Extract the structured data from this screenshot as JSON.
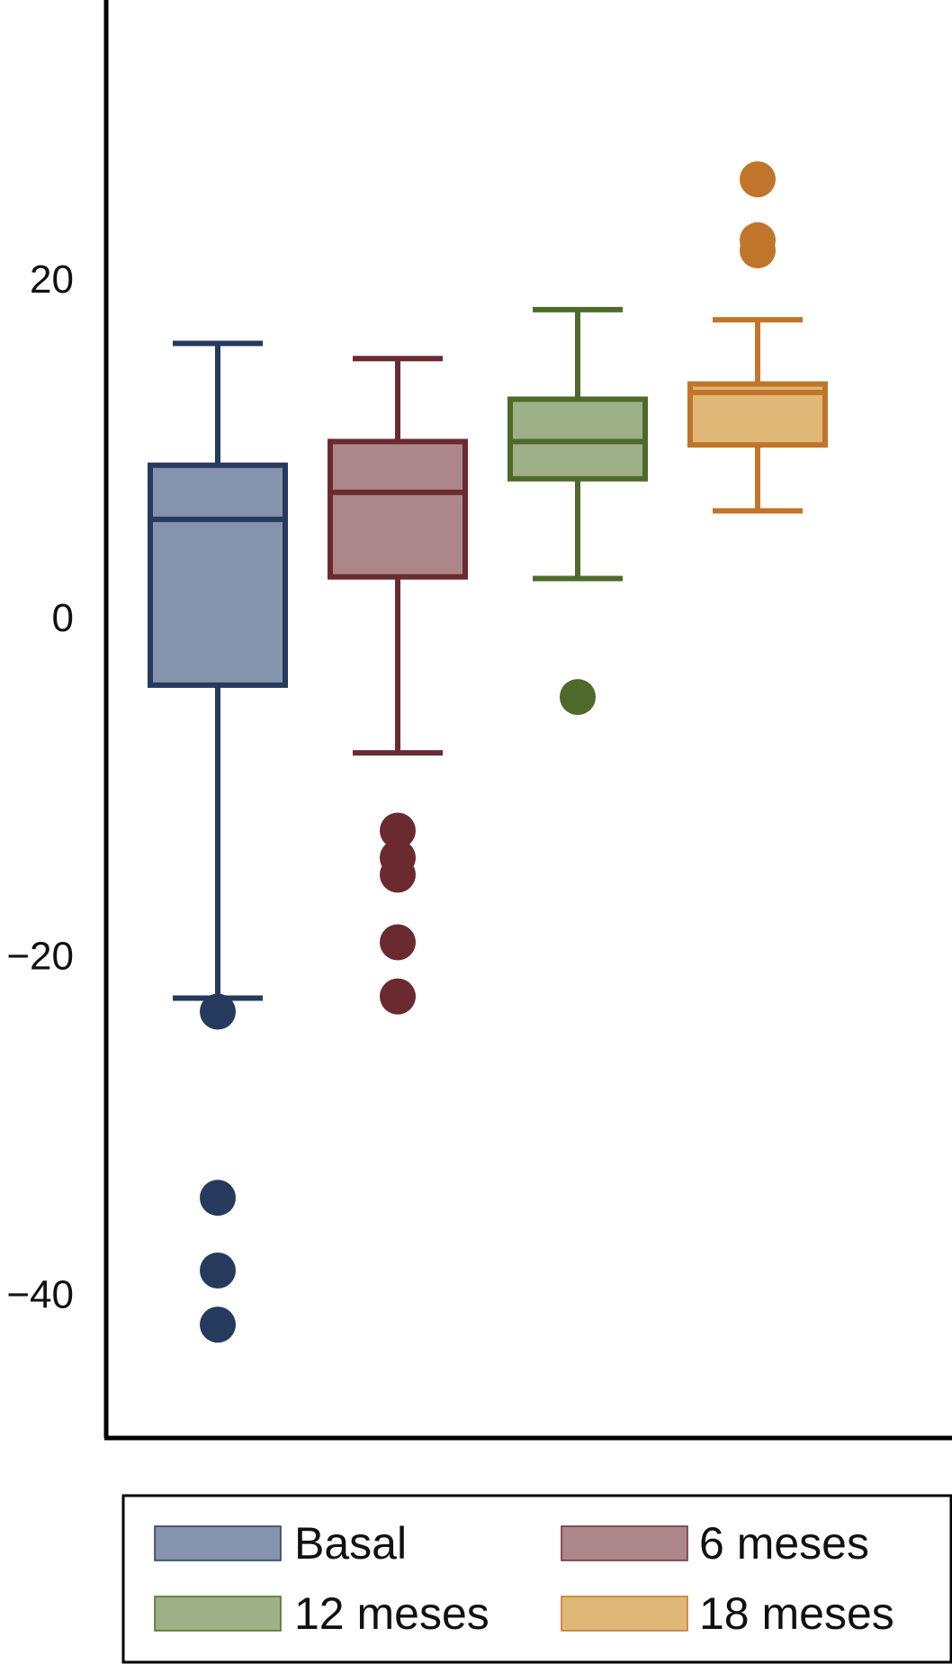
{
  "chart_data": {
    "type": "box",
    "title": "",
    "xlabel": "",
    "ylabel": "",
    "ylim": [
      -48.5,
      36.5
    ],
    "yticks": [
      20,
      0,
      -20,
      -40
    ],
    "ytick_labels": [
      "20",
      "0",
      "−20",
      "−40"
    ],
    "grid": false,
    "legend_position": "bottom",
    "series": [
      {
        "name": "Basal",
        "stroke": "#263a5e",
        "fill": "#8593ac",
        "whisker_low": -22.5,
        "q1": -4.0,
        "median": 5.8,
        "q3": 9.0,
        "whisker_high": 16.2,
        "outliers": [
          -23.3,
          -34.3,
          -38.6,
          -41.8
        ]
      },
      {
        "name": "6 meses",
        "stroke": "#6b2a30",
        "fill": "#ac8789",
        "whisker_low": -8.0,
        "q1": 2.4,
        "median": 7.4,
        "q3": 10.4,
        "whisker_high": 15.3,
        "outliers": [
          -12.6,
          -14.2,
          -15.2,
          -19.2,
          -22.4
        ]
      },
      {
        "name": "12 meses",
        "stroke": "#4d6a2a",
        "fill": "#9eb087",
        "whisker_low": 2.3,
        "q1": 8.2,
        "median": 10.4,
        "q3": 12.9,
        "whisker_high": 18.2,
        "outliers": [
          -4.7
        ]
      },
      {
        "name": "18 meses",
        "stroke": "#c0752a",
        "fill": "#dfb878",
        "whisker_low": 6.3,
        "q1": 10.2,
        "median": 13.3,
        "q3": 13.8,
        "whisker_high": 17.6,
        "outliers": [
          25.9,
          22.3,
          21.7
        ]
      }
    ]
  }
}
